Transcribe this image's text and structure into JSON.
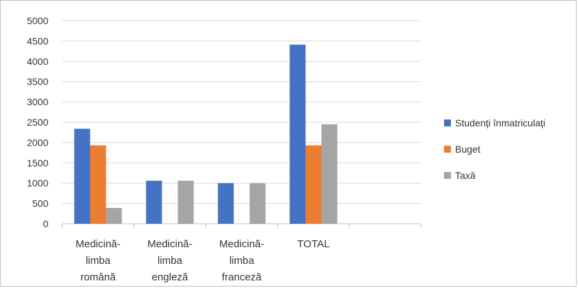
{
  "chart_data": {
    "type": "bar",
    "title": "",
    "xlabel": "",
    "ylabel": "",
    "ylim": [
      0,
      5000
    ],
    "yticks": [
      0,
      500,
      1000,
      1500,
      2000,
      2500,
      3000,
      3500,
      4000,
      4500,
      5000
    ],
    "grid": true,
    "legend_position": "right",
    "categories": [
      [
        "Medicină-",
        "limba",
        "română"
      ],
      [
        "Medicină-",
        "limba",
        "engleză"
      ],
      [
        "Medicină-",
        "limba",
        "franceză"
      ],
      [
        "TOTAL"
      ],
      [
        ""
      ]
    ],
    "series": [
      {
        "name": "Studenți înmatriculați",
        "color": "#4472c4",
        "values": [
          2340,
          1060,
          1000,
          4410,
          null
        ]
      },
      {
        "name": "Buget",
        "color": "#ed7d31",
        "values": [
          1930,
          0,
          0,
          1930,
          null
        ]
      },
      {
        "name": "Taxă",
        "color": "#a5a5a5",
        "values": [
          390,
          1060,
          1000,
          2450,
          null
        ]
      }
    ]
  }
}
